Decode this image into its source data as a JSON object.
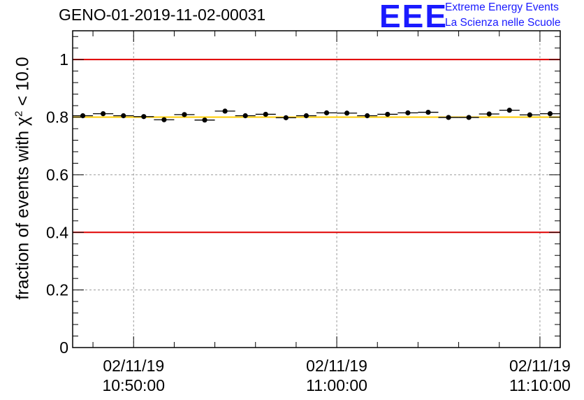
{
  "header": {
    "run_title": "GENO-01-2019-11-02-00031",
    "logo_text": "EEE",
    "logo_line1": "Extreme Energy Events",
    "logo_line2": "La Scienza nelle Scuole"
  },
  "colors": {
    "accent": "#1a1aff",
    "limit_line": "#e00000",
    "reference_line": "#ffcc00",
    "grid": "#999999",
    "points": "#000000"
  },
  "chart_data": {
    "type": "scatter",
    "title": "GENO-01-2019-11-02-00031",
    "ylabel_prefix": "fraction of events with",
    "ylabel_symbol": "χ",
    "ylabel_power": "2",
    "ylabel_suffix": "< 10.0",
    "xlabel": "",
    "x_unit": "minutes since 10:50:00",
    "xlim": [
      -3,
      21
    ],
    "ylim": [
      0,
      1.1
    ],
    "yticks": [
      0,
      0.2,
      0.4,
      0.6,
      0.8,
      1
    ],
    "ytick_labels": [
      "0",
      "0.2",
      "0.4",
      "0.6",
      "0.8",
      "1"
    ],
    "xticks": [
      {
        "x": 0,
        "date": "02/11/19",
        "time": "10:50:00"
      },
      {
        "x": 10,
        "date": "02/11/19",
        "time": "11:00:00"
      },
      {
        "x": 20,
        "date": "02/11/19",
        "time": "11:10:00"
      }
    ],
    "bin_width": 1,
    "x": [
      -2.5,
      -1.5,
      -0.5,
      0.5,
      1.5,
      2.5,
      3.5,
      4.5,
      5.5,
      6.5,
      7.5,
      8.5,
      9.5,
      10.5,
      11.5,
      12.5,
      13.5,
      14.5,
      15.5,
      16.5,
      17.5,
      18.5,
      19.5,
      20.5
    ],
    "values": [
      0.805,
      0.812,
      0.805,
      0.802,
      0.791,
      0.809,
      0.79,
      0.821,
      0.805,
      0.81,
      0.798,
      0.805,
      0.815,
      0.814,
      0.805,
      0.81,
      0.815,
      0.817,
      0.799,
      0.799,
      0.811,
      0.824,
      0.808,
      0.812
    ],
    "reference_lines": [
      {
        "y": 1.0,
        "color": "#e00000"
      },
      {
        "y": 0.4,
        "color": "#e00000"
      },
      {
        "y": 0.8,
        "color": "#ffcc00"
      }
    ],
    "grid": true
  }
}
